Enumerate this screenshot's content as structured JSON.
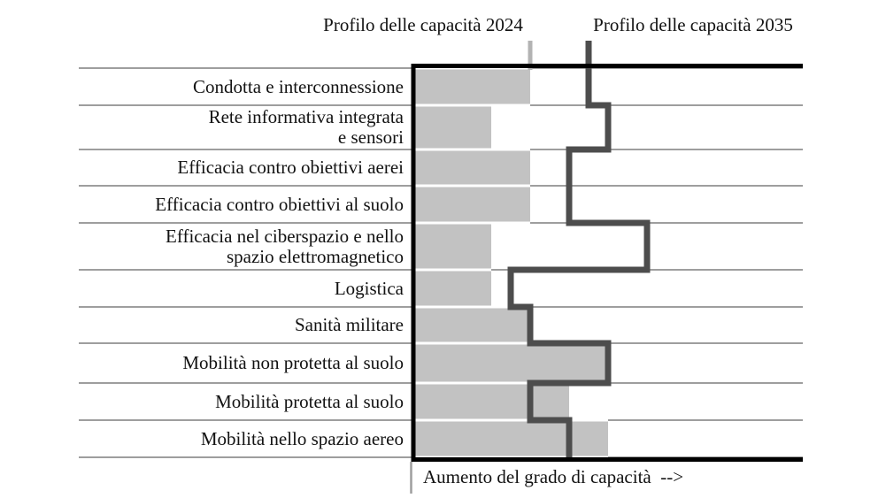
{
  "chart_data": {
    "type": "bar",
    "subtype": "horizontal-bars-with-step-line",
    "categories": [
      "Condotta e interconnessione",
      "Rete informativa integrata\ne sensori",
      "Efficacia contro obiettivi aerei",
      "Efficacia contro obiettivi al suolo",
      "Efficacia nel ciberspazio e nello\nspazio elettromagnetico",
      "Logistica",
      "Sanità militare",
      "Mobilità non protetta al suolo",
      "Mobilità protetta al suolo",
      "Mobilità nello spazio aereo"
    ],
    "series": [
      {
        "name": "Profilo delle capacità 2024",
        "render": "bar",
        "color": "#c2c2c2",
        "values": [
          30,
          20,
          30,
          30,
          20,
          20,
          30,
          50,
          40,
          50
        ]
      },
      {
        "name": "Profilo delle capacità 2035",
        "render": "step-line",
        "color": "#4d4d4d",
        "values": [
          45,
          50,
          40,
          40,
          60,
          25,
          30,
          50,
          30,
          40
        ]
      }
    ],
    "xlabel": "Aumento del grado di capacità  -->",
    "xlim": [
      0,
      100
    ],
    "x_axis_ticks_labeled": false,
    "grid": true,
    "legend_position": "top",
    "legend_ticks": {
      "tick_2024": 30,
      "tick_2035": 45
    },
    "colors": {
      "grid": "#9e9e9e",
      "axis": "#000000",
      "tick_2024": "#b3b3b3",
      "background": "#ffffff",
      "text": "#121212"
    }
  }
}
